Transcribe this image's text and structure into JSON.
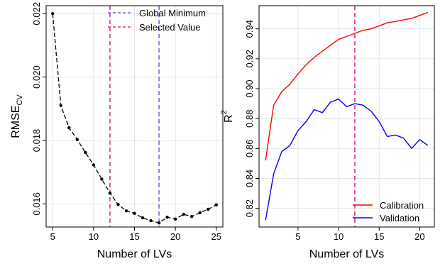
{
  "chart_data": [
    {
      "type": "line",
      "xlabel": "Number of LVs",
      "ylabel_main": "RMSE",
      "ylabel_sub": "CV",
      "xlim": [
        4.2,
        25.8
      ],
      "ylim": [
        0.01527,
        0.02225
      ],
      "xticks": [
        5,
        10,
        15,
        20,
        25
      ],
      "yticks": [
        0.016,
        0.018,
        0.02,
        0.022
      ],
      "ytick_labels": [
        "0.016",
        "0.018",
        "0.020",
        "0.022"
      ],
      "grid": true,
      "legend_position": "top-right",
      "series": [
        {
          "color": "#000000",
          "style": "dashed-with-points",
          "x": [
            5,
            6,
            7,
            8,
            9,
            10,
            11,
            12,
            13,
            14,
            15,
            16,
            17,
            18,
            19,
            20,
            21,
            22,
            23,
            24,
            25
          ],
          "values": [
            0.022,
            0.0191,
            0.0184,
            0.01803,
            0.01762,
            0.01723,
            0.01678,
            0.01634,
            0.01598,
            0.01578,
            0.0157,
            0.01556,
            0.01547,
            0.0154,
            0.01558,
            0.01552,
            0.01567,
            0.0156,
            0.01572,
            0.01583,
            0.01597
          ]
        }
      ],
      "reference_lines": [
        {
          "name": "Global Minimum",
          "x": 18,
          "color": "#7B68EE"
        },
        {
          "name": "Selected  Value",
          "x": 12,
          "color": "#E0308A"
        }
      ]
    },
    {
      "type": "line",
      "xlabel": "Number of LVs",
      "ylabel_main": "R",
      "ylabel_sup": "2",
      "xlim": [
        0.2,
        21.8
      ],
      "ylim": [
        0.8075,
        0.9555
      ],
      "xticks": [
        5,
        10,
        15,
        20
      ],
      "yticks": [
        0.82,
        0.84,
        0.86,
        0.88,
        0.9,
        0.92,
        0.94
      ],
      "ytick_labels": [
        "0.82",
        "0.84",
        "0.86",
        "0.88",
        "0.90",
        "0.92",
        "0.94"
      ],
      "grid": true,
      "legend_position": "bottom-right",
      "reference_lines": [
        {
          "x": 12,
          "color": "#E0308A"
        }
      ],
      "series": [
        {
          "name": "Calibration",
          "color": "#FF0000",
          "x": [
            1,
            2,
            3,
            4,
            5,
            6,
            7,
            8,
            9,
            10,
            11,
            12,
            13,
            14,
            15,
            16,
            17,
            18,
            19,
            20,
            21
          ],
          "values": [
            0.852,
            0.889,
            0.898,
            0.903,
            0.91,
            0.916,
            0.921,
            0.925,
            0.929,
            0.933,
            0.935,
            0.937,
            0.939,
            0.94,
            0.942,
            0.944,
            0.945,
            0.946,
            0.947,
            0.949,
            0.951
          ]
        },
        {
          "name": "Validation",
          "color": "#0000FF",
          "x": [
            1,
            2,
            3,
            4,
            5,
            6,
            7,
            8,
            9,
            10,
            11,
            12,
            13,
            14,
            15,
            16,
            17,
            18,
            19,
            20,
            21
          ],
          "values": [
            0.812,
            0.843,
            0.858,
            0.862,
            0.872,
            0.878,
            0.886,
            0.884,
            0.891,
            0.893,
            0.888,
            0.89,
            0.889,
            0.885,
            0.878,
            0.868,
            0.869,
            0.867,
            0.86,
            0.866,
            0.862
          ]
        }
      ]
    }
  ]
}
